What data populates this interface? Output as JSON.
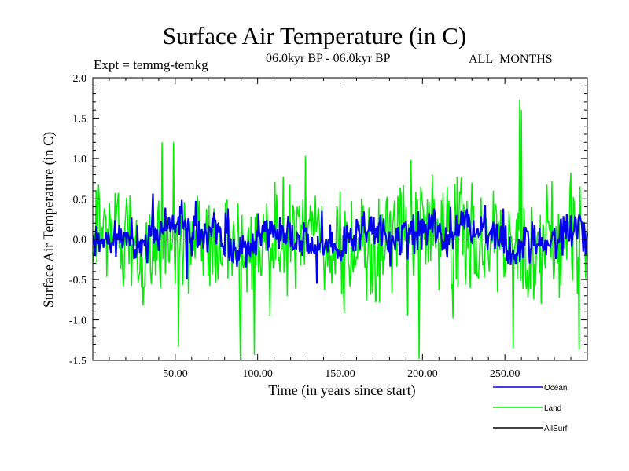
{
  "chart_data": {
    "type": "line",
    "title": "Surface Air Temperature (in C)",
    "experiment": "Expt = temmg-temkg",
    "period": "06.0kyr BP - 06.0kyr BP",
    "months": "ALL_MONTHS",
    "xlabel": "Time (in years since start)",
    "ylabel": "Surface Air Temperature (in C)",
    "xlim": [
      0,
      300
    ],
    "ylim": [
      -1.5,
      2.0
    ],
    "x_ticks": [
      50,
      100,
      150,
      200,
      250
    ],
    "x_tick_labels": [
      "50.00",
      "100.00",
      "150.00",
      "200.00",
      "250.00"
    ],
    "y_ticks": [
      -1.5,
      -1.0,
      -0.5,
      0.0,
      0.5,
      1.0,
      1.5,
      2.0
    ],
    "y_tick_labels": [
      "-1.5",
      "-1.0",
      "-0.5",
      "0.0",
      "0.5",
      "1.0",
      "1.5",
      "2.0"
    ],
    "reference_line": 0.0,
    "series": [
      {
        "name": "Land",
        "color": "#00ee00",
        "step_years": 0.5,
        "x_start": 0,
        "x_end": 300,
        "base_amplitude": 0.35,
        "noted_extremes": [
          {
            "x": 259,
            "y": 1.73
          },
          {
            "x": 260,
            "y": 1.6
          },
          {
            "x": 42,
            "y": 1.2
          },
          {
            "x": 49,
            "y": 1.2
          },
          {
            "x": 98,
            "y": -1.43
          },
          {
            "x": 198,
            "y": -1.48
          },
          {
            "x": 255,
            "y": -1.35
          },
          {
            "x": 295,
            "y": -1.37
          },
          {
            "x": 52,
            "y": -1.33
          }
        ]
      },
      {
        "name": "Ocean",
        "color": "#0000ee",
        "step_years": 0.5,
        "x_start": 0,
        "x_end": 300,
        "base_amplitude": 0.12,
        "noted_extremes": [
          {
            "x": 82,
            "y": 0.38
          },
          {
            "x": 139,
            "y": 0.35
          },
          {
            "x": 249,
            "y": 0.38
          },
          {
            "x": 136,
            "y": -0.55
          },
          {
            "x": 57,
            "y": -0.5
          }
        ]
      },
      {
        "name": "AllSurf",
        "color": "#000000"
      }
    ],
    "legend_position": "bottom-right"
  }
}
